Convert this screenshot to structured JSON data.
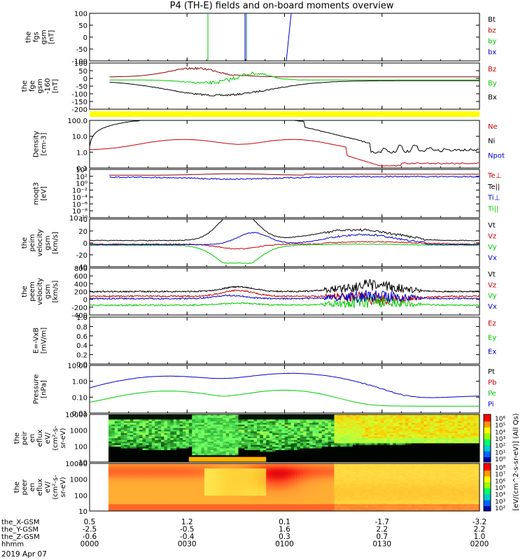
{
  "title": "P4 (TH-E) fields and on-board moments overview",
  "colors": {
    "black": "#000000",
    "red": "#cc0000",
    "green": "#00cc00",
    "blue": "#0000cc",
    "yellow": "#ffff00",
    "darkred": "#8b0000"
  },
  "chart_data": [
    {
      "type": "line",
      "id": "fgs",
      "ylabel": [
        "the",
        "fgs",
        "gsm",
        "[nT]"
      ],
      "yticks": [
        "100",
        "50",
        "0",
        "-50",
        "-100"
      ],
      "ylim": [
        -100,
        100
      ],
      "legend": [
        {
          "label": "Bt",
          "color": "black"
        },
        {
          "label": "bz",
          "color": "red"
        },
        {
          "label": "by",
          "color": "green"
        },
        {
          "label": "bx",
          "color": "blue"
        }
      ]
    },
    {
      "type": "line",
      "id": "fge",
      "ylabel": [
        "the",
        "fge",
        "gsm",
        "-160",
        "[nT]"
      ],
      "yticks": [
        "100",
        "50",
        "0",
        "-50",
        "-100",
        "-150",
        "-200"
      ],
      "ylim": [
        -200,
        100
      ],
      "legend": [
        {
          "label": "Bz",
          "color": "red"
        },
        {
          "label": "By",
          "color": "green"
        },
        {
          "label": "Bx",
          "color": "black"
        }
      ]
    },
    {
      "type": "line",
      "id": "density",
      "ylabel": [
        "Density",
        "[cm-3]"
      ],
      "yticks": [
        "100.0",
        "10.0",
        "1.0",
        "0.1"
      ],
      "scale": "log",
      "legend": [
        {
          "label": "Ne",
          "color": "red"
        },
        {
          "label": "Ni",
          "color": "black"
        },
        {
          "label": "Npot",
          "color": "blue"
        }
      ]
    },
    {
      "type": "line",
      "id": "temp",
      "ylabel": [
        "moqt3",
        "[eV]"
      ],
      "yticks": [
        "10⁴",
        "10²",
        "10⁰",
        "10⁻²",
        "10⁻⁴",
        "10⁻⁶",
        "10⁻⁸",
        "10⁻¹⁰"
      ],
      "scale": "log",
      "legend": [
        {
          "label": "Te⊥",
          "color": "red"
        },
        {
          "label": "Te||",
          "color": "black"
        },
        {
          "label": "Ti⊥",
          "color": "blue"
        },
        {
          "label": "Ti||",
          "color": "green"
        }
      ]
    },
    {
      "type": "line",
      "id": "peim",
      "ylabel": [
        "the",
        "peim",
        "velocity",
        "gsm",
        "[km/s]"
      ],
      "yticks": [
        "40",
        "20",
        "0",
        "-20",
        "-40"
      ],
      "ylim": [
        -40,
        40
      ],
      "legend": [
        {
          "label": "Vt",
          "color": "black"
        },
        {
          "label": "Vz",
          "color": "red"
        },
        {
          "label": "Vy",
          "color": "green"
        },
        {
          "label": "Vx",
          "color": "blue"
        }
      ]
    },
    {
      "type": "line",
      "id": "peem",
      "ylabel": [
        "the",
        "peem",
        "velocity",
        "gsm",
        "[km/s]"
      ],
      "yticks": [
        "800",
        "600",
        "400",
        "200",
        "0",
        "-200",
        "-400"
      ],
      "ylim": [
        -400,
        800
      ],
      "legend": [
        {
          "label": "Vt",
          "color": "black"
        },
        {
          "label": "Vz",
          "color": "red"
        },
        {
          "label": "Vy",
          "color": "green"
        },
        {
          "label": "Vx",
          "color": "blue"
        }
      ]
    },
    {
      "type": "line",
      "id": "efield",
      "ylabel": [
        "E=-VxB",
        "[mV/m]"
      ],
      "yticks": [
        "1.0",
        "0.8",
        "0.6",
        "0.4",
        "0.2",
        "0.0"
      ],
      "ylim": [
        0,
        1
      ],
      "legend": [
        {
          "label": "Ez",
          "color": "red"
        },
        {
          "label": "Ey",
          "color": "green"
        },
        {
          "label": "Ex",
          "color": "blue"
        }
      ]
    },
    {
      "type": "line",
      "id": "pressure",
      "ylabel": [
        "Pressure",
        "[nPa]"
      ],
      "yticks": [
        "10.00",
        "1.00",
        "0.10",
        "0.01"
      ],
      "scale": "log",
      "legend": [
        {
          "label": "Pt",
          "color": "black"
        },
        {
          "label": "Pb",
          "color": "red"
        },
        {
          "label": "Pe",
          "color": "green"
        },
        {
          "label": "Pi",
          "color": "blue"
        }
      ]
    },
    {
      "type": "heatmap",
      "id": "peir",
      "ylabel": [
        "the",
        "peir",
        "en",
        "eflux",
        "eV/",
        "(cm²-s-",
        "sr-eV)"
      ],
      "yticks": [
        "10000",
        "1000",
        "100",
        "10"
      ],
      "scale": "log",
      "colorbar": {
        "ticks": [
          "10⁶",
          "10⁵",
          "10⁴",
          "10³",
          "10²",
          "10¹",
          "10⁰"
        ],
        "label": "[eV/(cm^2-s-sr-eV)] (All Qs)"
      }
    },
    {
      "type": "heatmap",
      "id": "peer",
      "ylabel": [
        "the",
        "peer",
        "en",
        "eflux",
        "eV/",
        "(cm²-s-",
        "sr-eV)"
      ],
      "yticks": [
        "10000",
        "1000",
        "100",
        "10"
      ],
      "scale": "log",
      "colorbar": {
        "ticks": [
          "10⁸",
          "10⁷",
          "10⁶",
          "10⁵",
          "10⁴",
          "10³",
          "10²"
        ],
        "label": "[eV/(cm^2-s-sr-eV)] (All Qs)"
      }
    }
  ],
  "x_axis": {
    "rows": [
      {
        "label": "the_X-GSM",
        "values": [
          "0.5",
          "1.2",
          "0.1",
          "-1.7",
          "-3.2"
        ]
      },
      {
        "label": "the_Y-GSM",
        "values": [
          "-2.5",
          "-0.5",
          "1.6",
          "2.2",
          "2.2"
        ]
      },
      {
        "label": "the_Z-GSM",
        "values": [
          "-0.6",
          "-0.4",
          "0.3",
          "0.7",
          "1.0"
        ]
      },
      {
        "label": "hhmm",
        "values": [
          "0000",
          "0030",
          "0100",
          "0130",
          "0200"
        ]
      }
    ],
    "date": "2019 Apr 07"
  }
}
